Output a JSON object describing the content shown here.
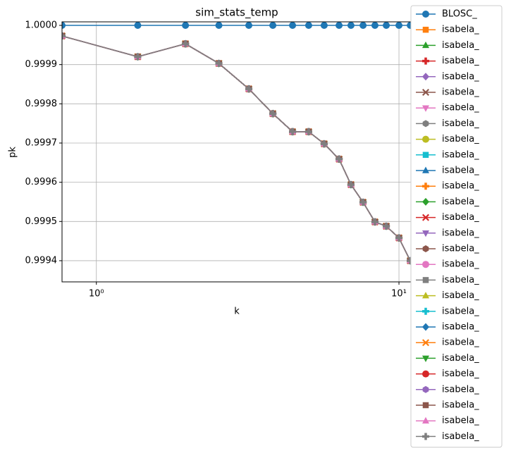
{
  "chart_data": {
    "type": "line",
    "title": "sim_stats_temp",
    "x_label": "k",
    "y_label": "pk",
    "x_scale": "log",
    "grid": true,
    "legend_position": "outside-right",
    "xlim": [
      0.77,
      11.07
    ],
    "xticks": [
      {
        "value": 1,
        "label": "10⁰"
      },
      {
        "value": 10,
        "label": "10¹"
      }
    ],
    "ylim": [
      0.999346,
      1.000009
    ],
    "yticks": [
      {
        "value": 0.9994,
        "label": "0.9994"
      },
      {
        "value": 0.9995,
        "label": "0.9995"
      },
      {
        "value": 0.9996,
        "label": "0.9996"
      },
      {
        "value": 0.9997,
        "label": "0.9997"
      },
      {
        "value": 0.9998,
        "label": "0.9998"
      },
      {
        "value": 0.9999,
        "label": "0.9999"
      },
      {
        "value": 1,
        "label": "1.0000"
      }
    ],
    "x": [
      0.77,
      1.37,
      1.97,
      2.54,
      3.19,
      3.83,
      4.45,
      5.03,
      5.66,
      6.34,
      6.94,
      7.61,
      8.33,
      9.08,
      10.0,
      10.9
    ],
    "series": [
      {
        "name": "BLOSC_",
        "color": "#1f77b4",
        "marker": "o",
        "values": [
          1,
          1,
          1,
          1,
          1,
          1,
          1,
          1,
          1,
          1,
          1,
          1,
          1,
          1,
          1,
          1
        ]
      },
      {
        "name": "isabela_",
        "color": "#ff7f0e",
        "marker": "s",
        "values": [
          0.999973,
          0.99992,
          0.999953,
          0.999903,
          0.999838,
          0.999775,
          0.999729,
          0.999729,
          0.999698,
          0.999659,
          0.999594,
          0.999549,
          0.999499,
          0.999488,
          0.999458,
          0.9994
        ]
      },
      {
        "name": "isabela_",
        "color": "#2ca02c",
        "marker": "^",
        "values": [
          0.999973,
          0.99992,
          0.999953,
          0.999903,
          0.999838,
          0.999775,
          0.999729,
          0.999729,
          0.999698,
          0.999659,
          0.999594,
          0.999549,
          0.999499,
          0.999488,
          0.999458,
          0.9994
        ]
      },
      {
        "name": "isabela_",
        "color": "#d62728",
        "marker": "P",
        "values": [
          0.999973,
          0.99992,
          0.999953,
          0.999903,
          0.999838,
          0.999775,
          0.999729,
          0.999729,
          0.999698,
          0.999659,
          0.999594,
          0.999549,
          0.999499,
          0.999488,
          0.999458,
          0.9994
        ]
      },
      {
        "name": "isabela_",
        "color": "#9467bd",
        "marker": "D",
        "values": [
          0.999973,
          0.99992,
          0.999953,
          0.999903,
          0.999838,
          0.999775,
          0.999729,
          0.999729,
          0.999698,
          0.999659,
          0.999594,
          0.999549,
          0.999499,
          0.999488,
          0.999458,
          0.9994
        ]
      },
      {
        "name": "isabela_",
        "color": "#8c564b",
        "marker": "X",
        "values": [
          0.999973,
          0.99992,
          0.999953,
          0.999903,
          0.999838,
          0.999775,
          0.999729,
          0.999729,
          0.999698,
          0.999659,
          0.999594,
          0.999549,
          0.999499,
          0.999488,
          0.999458,
          0.9994
        ]
      },
      {
        "name": "isabela_",
        "color": "#e377c2",
        "marker": "v",
        "values": [
          0.999973,
          0.99992,
          0.999953,
          0.999903,
          0.999838,
          0.999775,
          0.999729,
          0.999729,
          0.999698,
          0.999659,
          0.999594,
          0.999549,
          0.999499,
          0.999488,
          0.999458,
          0.9994
        ]
      },
      {
        "name": "isabela_",
        "color": "#7f7f7f",
        "marker": "h",
        "values": [
          0.999973,
          0.99992,
          0.999953,
          0.999903,
          0.999838,
          0.999775,
          0.999729,
          0.999729,
          0.999698,
          0.999659,
          0.999594,
          0.999549,
          0.999499,
          0.999488,
          0.999458,
          0.9994
        ]
      },
      {
        "name": "isabela_",
        "color": "#bcbd22",
        "marker": "o",
        "values": [
          0.999973,
          0.99992,
          0.999953,
          0.999903,
          0.999838,
          0.999775,
          0.999729,
          0.999729,
          0.999698,
          0.999659,
          0.999594,
          0.999549,
          0.999499,
          0.999488,
          0.999458,
          0.9994
        ]
      },
      {
        "name": "isabela_",
        "color": "#17becf",
        "marker": "s",
        "values": [
          0.999973,
          0.99992,
          0.999953,
          0.999903,
          0.999838,
          0.999775,
          0.999729,
          0.999729,
          0.999698,
          0.999659,
          0.999594,
          0.999549,
          0.999499,
          0.999488,
          0.999458,
          0.9994
        ]
      },
      {
        "name": "isabela_",
        "color": "#1f77b4",
        "marker": "^",
        "values": [
          0.999973,
          0.99992,
          0.999953,
          0.999903,
          0.999838,
          0.999775,
          0.999729,
          0.999729,
          0.999698,
          0.999659,
          0.999594,
          0.999549,
          0.999499,
          0.999488,
          0.999458,
          0.9994
        ]
      },
      {
        "name": "isabela_",
        "color": "#ff7f0e",
        "marker": "P",
        "values": [
          0.999973,
          0.99992,
          0.999953,
          0.999903,
          0.999838,
          0.999775,
          0.999729,
          0.999729,
          0.999698,
          0.999659,
          0.999594,
          0.999549,
          0.999499,
          0.999488,
          0.999458,
          0.9994
        ]
      },
      {
        "name": "isabela_",
        "color": "#2ca02c",
        "marker": "D",
        "values": [
          0.999973,
          0.99992,
          0.999953,
          0.999903,
          0.999838,
          0.999775,
          0.999729,
          0.999729,
          0.999698,
          0.999659,
          0.999594,
          0.999549,
          0.999499,
          0.999488,
          0.999458,
          0.9994
        ]
      },
      {
        "name": "isabela_",
        "color": "#d62728",
        "marker": "X",
        "values": [
          0.999973,
          0.99992,
          0.999953,
          0.999903,
          0.999838,
          0.999775,
          0.999729,
          0.999729,
          0.999698,
          0.999659,
          0.999594,
          0.999549,
          0.999499,
          0.999488,
          0.999458,
          0.9994
        ]
      },
      {
        "name": "isabela_",
        "color": "#9467bd",
        "marker": "v",
        "values": [
          0.999973,
          0.99992,
          0.999953,
          0.999903,
          0.999838,
          0.999775,
          0.999729,
          0.999729,
          0.999698,
          0.999659,
          0.999594,
          0.999549,
          0.999499,
          0.999488,
          0.999458,
          0.9994
        ]
      },
      {
        "name": "isabela_",
        "color": "#8c564b",
        "marker": "h",
        "values": [
          0.999973,
          0.99992,
          0.999953,
          0.999903,
          0.999838,
          0.999775,
          0.999729,
          0.999729,
          0.999698,
          0.999659,
          0.999594,
          0.999549,
          0.999499,
          0.999488,
          0.999458,
          0.9994
        ]
      },
      {
        "name": "isabela_",
        "color": "#e377c2",
        "marker": "o",
        "values": [
          0.999973,
          0.99992,
          0.999953,
          0.999903,
          0.999838,
          0.999775,
          0.999729,
          0.999729,
          0.999698,
          0.999659,
          0.999594,
          0.999549,
          0.999499,
          0.999488,
          0.999458,
          0.9994
        ]
      },
      {
        "name": "isabela_",
        "color": "#7f7f7f",
        "marker": "s",
        "values": [
          0.999973,
          0.99992,
          0.999953,
          0.999903,
          0.999838,
          0.999775,
          0.999729,
          0.999729,
          0.999698,
          0.999659,
          0.999594,
          0.999549,
          0.999499,
          0.999488,
          0.999458,
          0.9994
        ]
      },
      {
        "name": "isabela_",
        "color": "#bcbd22",
        "marker": "^",
        "values": [
          0.999973,
          0.99992,
          0.999953,
          0.999903,
          0.999838,
          0.999775,
          0.999729,
          0.999729,
          0.999698,
          0.999659,
          0.999594,
          0.999549,
          0.999499,
          0.999488,
          0.999458,
          0.9994
        ]
      },
      {
        "name": "isabela_",
        "color": "#17becf",
        "marker": "P",
        "values": [
          0.999973,
          0.99992,
          0.999953,
          0.999903,
          0.999838,
          0.999775,
          0.999729,
          0.999729,
          0.999698,
          0.999659,
          0.999594,
          0.999549,
          0.999499,
          0.999488,
          0.999458,
          0.9994
        ]
      },
      {
        "name": "isabela_",
        "color": "#1f77b4",
        "marker": "D",
        "values": [
          0.999973,
          0.99992,
          0.999953,
          0.999903,
          0.999838,
          0.999775,
          0.999729,
          0.999729,
          0.999698,
          0.999659,
          0.999594,
          0.999549,
          0.999499,
          0.999488,
          0.999458,
          0.9994
        ]
      },
      {
        "name": "isabela_",
        "color": "#ff7f0e",
        "marker": "X",
        "values": [
          0.999973,
          0.99992,
          0.999953,
          0.999903,
          0.999838,
          0.999775,
          0.999729,
          0.999729,
          0.999698,
          0.999659,
          0.999594,
          0.999549,
          0.999499,
          0.999488,
          0.999458,
          0.9994
        ]
      },
      {
        "name": "isabela_",
        "color": "#2ca02c",
        "marker": "v",
        "values": [
          0.999973,
          0.99992,
          0.999953,
          0.999903,
          0.999838,
          0.999775,
          0.999729,
          0.999729,
          0.999698,
          0.999659,
          0.999594,
          0.999549,
          0.999499,
          0.999488,
          0.999458,
          0.9994
        ]
      },
      {
        "name": "isabela_",
        "color": "#d62728",
        "marker": "o",
        "values": [
          0.999973,
          0.99992,
          0.999953,
          0.999903,
          0.999838,
          0.999775,
          0.999729,
          0.999729,
          0.999698,
          0.999659,
          0.999594,
          0.999549,
          0.999499,
          0.999488,
          0.999458,
          0.9994
        ]
      },
      {
        "name": "isabela_",
        "color": "#9467bd",
        "marker": "h",
        "values": [
          0.999973,
          0.99992,
          0.999953,
          0.999903,
          0.999838,
          0.999775,
          0.999729,
          0.999729,
          0.999698,
          0.999659,
          0.999594,
          0.999549,
          0.999499,
          0.999488,
          0.999458,
          0.9994
        ]
      },
      {
        "name": "isabela_",
        "color": "#8c564b",
        "marker": "s",
        "values": [
          0.999973,
          0.99992,
          0.999953,
          0.999903,
          0.999838,
          0.999775,
          0.999729,
          0.999729,
          0.999698,
          0.999659,
          0.999594,
          0.999549,
          0.999499,
          0.999488,
          0.999458,
          0.9994
        ]
      },
      {
        "name": "isabela_",
        "color": "#e377c2",
        "marker": "^",
        "values": [
          0.999973,
          0.99992,
          0.999953,
          0.999903,
          0.999838,
          0.999775,
          0.999729,
          0.999729,
          0.999698,
          0.999659,
          0.999594,
          0.999549,
          0.999499,
          0.999488,
          0.999458,
          0.9994
        ]
      },
      {
        "name": "isabela_",
        "color": "#7f7f7f",
        "marker": "P",
        "values": [
          0.999973,
          0.99992,
          0.999953,
          0.999903,
          0.999838,
          0.999775,
          0.999729,
          0.999729,
          0.999698,
          0.999659,
          0.999594,
          0.999549,
          0.999499,
          0.999488,
          0.999458,
          0.9994
        ]
      }
    ]
  }
}
